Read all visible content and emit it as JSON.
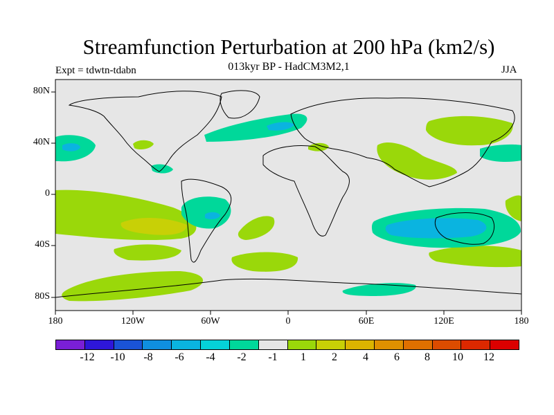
{
  "title": "Streamfunction Perturbation at 200 hPa (km2/s)",
  "subtitle": "013kyr BP - HadCM3M2,1",
  "experiment": "Expt = tdwtn-tdabn",
  "season": "JJA",
  "map": {
    "background_color": "#e6e6e6",
    "lat_ticks": [
      "80N",
      "40N",
      "0",
      "40S",
      "80S"
    ],
    "lon_ticks": [
      "180",
      "120W",
      "60W",
      "0",
      "60E",
      "120E",
      "180"
    ]
  },
  "colorbar": {
    "colors": [
      "#7a1fd6",
      "#2e16d9",
      "#1a53d6",
      "#0f8fe0",
      "#0ab4e0",
      "#05d2d8",
      "#00d89a",
      "#e6e6e6",
      "#9ad80a",
      "#c8d006",
      "#dcb400",
      "#e09000",
      "#e07000",
      "#dc4c00",
      "#dc2800",
      "#dc0000"
    ],
    "labels": [
      "-12",
      "-10",
      "-8",
      "-6",
      "-4",
      "-2",
      "-1",
      "1",
      "2",
      "4",
      "6",
      "8",
      "10",
      "12"
    ]
  },
  "colors": {
    "c_n2": "#00d89a",
    "c_n4": "#0ab4e0",
    "c_p2": "#9ad80a",
    "c_p4": "#c8d006"
  }
}
